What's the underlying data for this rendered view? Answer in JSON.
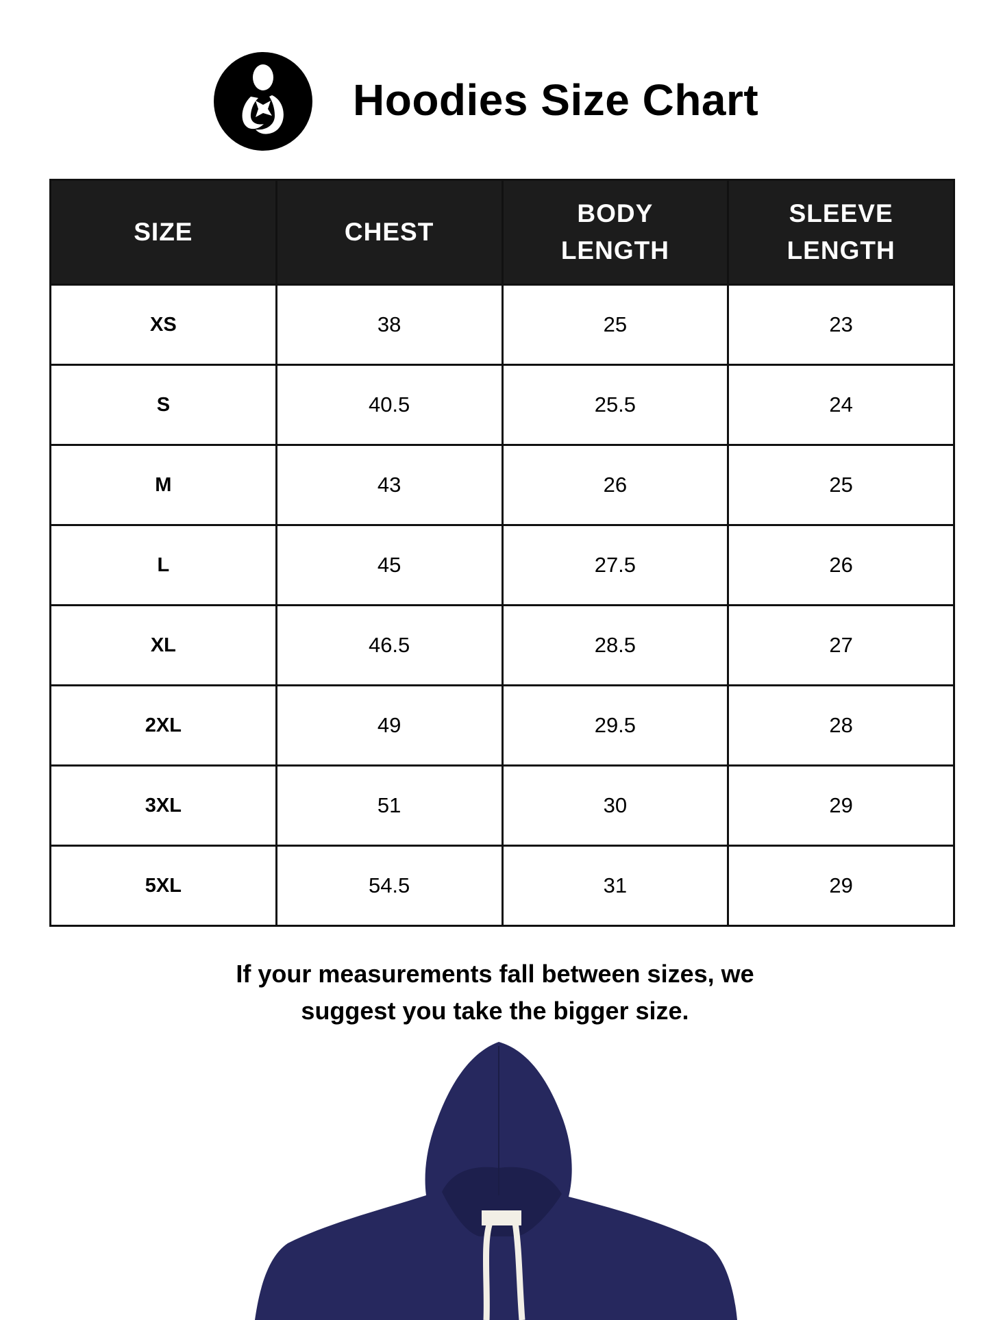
{
  "header": {
    "title": "Hoodies Size Chart",
    "logo_icon": "mother-and-child-logo-icon"
  },
  "table": {
    "columns": [
      "SIZE",
      "CHEST",
      "BODY\nLENGTH",
      "SLEEVE\nLENGTH"
    ],
    "rows": [
      [
        "XS",
        "38",
        "25",
        "23"
      ],
      [
        "S",
        "40.5",
        "25.5",
        "24"
      ],
      [
        "M",
        "43",
        "26",
        "25"
      ],
      [
        "L",
        "45",
        "27.5",
        "26"
      ],
      [
        "XL",
        "46.5",
        "28.5",
        "27"
      ],
      [
        "2XL",
        "49",
        "29.5",
        "28"
      ],
      [
        "3XL",
        "51",
        "30",
        "29"
      ],
      [
        "5XL",
        "54.5",
        "31",
        "29"
      ]
    ]
  },
  "note": {
    "line1": "If your measurements fall between sizes, we",
    "line2": "suggest you take the bigger size."
  },
  "colors": {
    "header_bg": "#1c1c1c",
    "hoodie": "#26285e",
    "drawstring": "#f2efe6"
  }
}
